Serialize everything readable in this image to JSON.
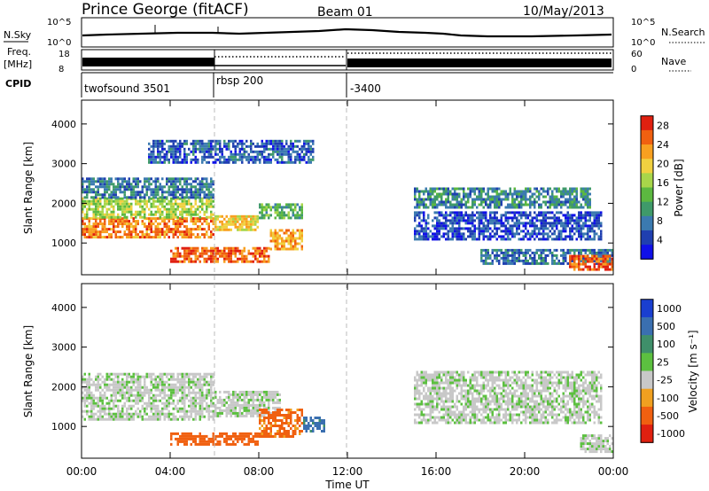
{
  "header": {
    "station": "Prince George (fitACF)",
    "beam": "Beam 01",
    "date": "10/May/2013"
  },
  "top_panels": {
    "nsky_label": "N.Sky",
    "nsky_ticks": [
      "10^5",
      "10^0"
    ],
    "nsearch_label": "N.Search",
    "nsearch_ticks": [
      "10^5",
      "10^0"
    ],
    "freq_label": "Freq.",
    "freq_unit": "[MHz]",
    "freq_ticks": [
      "18",
      "8"
    ],
    "nave_label": "Nave",
    "nave_ticks": [
      "60",
      "0"
    ],
    "cpid_label": "CPID",
    "cpid_segments": [
      "twofsound 3501",
      "rbsp 200",
      "-3400"
    ]
  },
  "chart_data": [
    {
      "type": "heatmap",
      "parameter": "Power",
      "ylabel": "Slant Range [km]",
      "ylim": [
        200,
        4600
      ],
      "yticks": [
        "1000",
        "2000",
        "3000",
        "4000"
      ],
      "xlim_hours": [
        0,
        24
      ],
      "xticks": [
        "00:00",
        "04:00",
        "08:00",
        "12:00",
        "16:00",
        "20:00",
        "00:00"
      ],
      "colorbar_label": "Power [dB]",
      "colorbar_ticks": [
        "4",
        "8",
        "12",
        "16",
        "20",
        "24",
        "28"
      ],
      "colorbar_colors": [
        "#1010e8",
        "#1f3fb0",
        "#3b7ab0",
        "#3f9a6a",
        "#5cb840",
        "#a8d64a",
        "#f0d040",
        "#f8a020",
        "#f06010",
        "#e02010"
      ],
      "colorbar_range": [
        0,
        30
      ],
      "echo_regions": [
        {
          "t0": 0.0,
          "t1": 6.0,
          "r0": 1150,
          "r1": 1650,
          "level": 24
        },
        {
          "t0": 0.0,
          "t1": 6.0,
          "r0": 1650,
          "r1": 2150,
          "level": 16
        },
        {
          "t0": 0.0,
          "t1": 6.0,
          "r0": 2150,
          "r1": 2650,
          "level": 8
        },
        {
          "t0": 6.0,
          "t1": 8.0,
          "r0": 1300,
          "r1": 1700,
          "level": 20
        },
        {
          "t0": 4.0,
          "t1": 8.5,
          "r0": 550,
          "r1": 900,
          "level": 26
        },
        {
          "t0": 8.5,
          "t1": 10.0,
          "r0": 850,
          "r1": 1350,
          "level": 22
        },
        {
          "t0": 8.0,
          "t1": 10.0,
          "r0": 1650,
          "r1": 2000,
          "level": 12
        },
        {
          "t0": 3.0,
          "t1": 10.5,
          "r0": 3050,
          "r1": 3600,
          "level": 6
        },
        {
          "t0": 15.0,
          "t1": 23.0,
          "r0": 1900,
          "r1": 2400,
          "level": 9
        },
        {
          "t0": 15.0,
          "t1": 23.5,
          "r0": 1100,
          "r1": 1800,
          "level": 5
        },
        {
          "t0": 18.0,
          "t1": 24.0,
          "r0": 500,
          "r1": 850,
          "level": 7
        },
        {
          "t0": 22.0,
          "t1": 24.0,
          "r0": 350,
          "r1": 700,
          "level": 26
        }
      ]
    },
    {
      "type": "heatmap",
      "parameter": "Velocity",
      "ylabel": "Slant Range [km]",
      "ylim": [
        200,
        4600
      ],
      "yticks": [
        "1000",
        "2000",
        "3000",
        "4000"
      ],
      "xlim_hours": [
        0,
        24
      ],
      "xticks": [
        "00:00",
        "04:00",
        "08:00",
        "12:00",
        "16:00",
        "20:00",
        "00:00"
      ],
      "xlabel": "Time UT",
      "colorbar_label": "Velocity [m s⁻¹]",
      "colorbar_ticks": [
        "1000",
        "500",
        "100",
        "25",
        "-25",
        "-100",
        "-500",
        "-1000"
      ],
      "colorbar_colors": [
        "#1a3fd0",
        "#3a6fb0",
        "#3f8f6a",
        "#5cc040",
        "#c8c8c8",
        "#f0a020",
        "#f06010",
        "#e02010"
      ],
      "echo_regions": [
        {
          "t0": 0.0,
          "t1": 6.0,
          "r0": 1150,
          "r1": 2350,
          "level": 0
        },
        {
          "t0": 6.0,
          "t1": 9.0,
          "r0": 1250,
          "r1": 1900,
          "level": 0
        },
        {
          "t0": 4.0,
          "t1": 8.0,
          "r0": 550,
          "r1": 850,
          "level": -300
        },
        {
          "t0": 8.0,
          "t1": 10.0,
          "r0": 750,
          "r1": 1450,
          "level": -200
        },
        {
          "t0": 10.0,
          "t1": 11.0,
          "r0": 900,
          "r1": 1250,
          "level": 200
        },
        {
          "t0": 15.0,
          "t1": 23.5,
          "r0": 1100,
          "r1": 2400,
          "level": 0
        },
        {
          "t0": 22.5,
          "t1": 24.0,
          "r0": 350,
          "r1": 800,
          "level": 0
        }
      ]
    }
  ]
}
